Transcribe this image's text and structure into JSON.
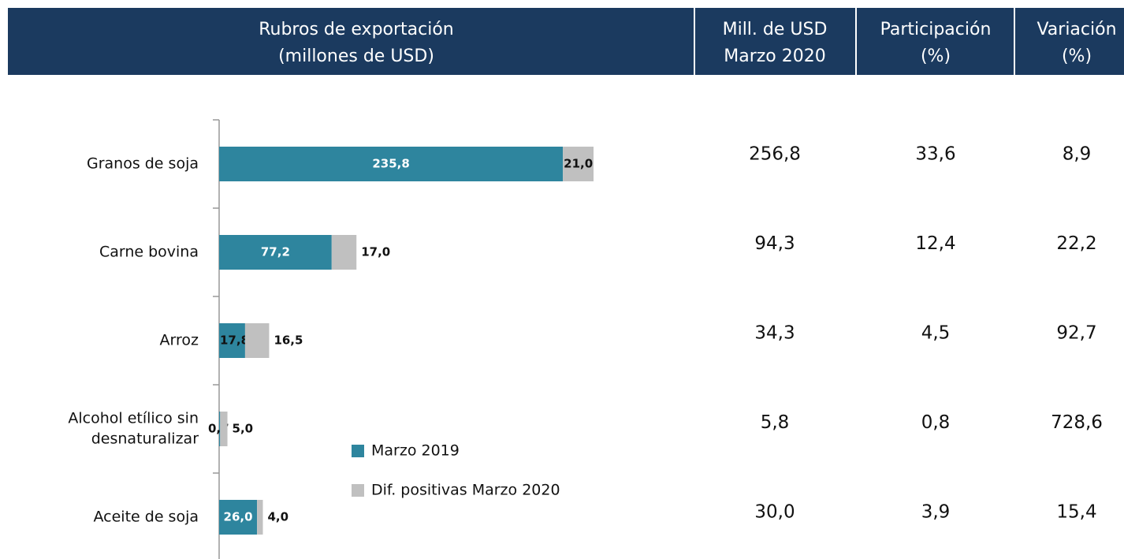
{
  "chart_data": {
    "type": "bar",
    "orientation": "horizontal",
    "stacked": true,
    "header": {
      "columns": [
        [
          "Rubros de exportación",
          "(millones de USD)"
        ],
        [
          "Mill. de USD",
          "Marzo 2020"
        ],
        [
          "Participación",
          "(%)"
        ],
        [
          "Variación",
          "(%)"
        ]
      ]
    },
    "categories": [
      [
        "Granos de soja"
      ],
      [
        "Carne bovina"
      ],
      [
        "Arroz"
      ],
      [
        "Alcohol etílico sin",
        "desnaturalizar"
      ],
      [
        "Aceite de soja"
      ]
    ],
    "series": [
      {
        "name": "Marzo 2019",
        "color": "#2e859e",
        "values": [
          235.8,
          77.2,
          17.8,
          0.7,
          26.0
        ],
        "value_labels": [
          "235,8",
          "77,2",
          "17,8",
          "0,7",
          "26,0"
        ]
      },
      {
        "name": "Dif. positivas Marzo 2020",
        "color": "#c0c0c0",
        "values": [
          21.0,
          17.0,
          16.5,
          5.0,
          4.0
        ],
        "value_labels": [
          "21,0",
          "17,0",
          "16,5",
          "5,0",
          "4,0"
        ]
      }
    ],
    "table": {
      "rows": [
        [
          "256,8",
          "33,6",
          "8,9"
        ],
        [
          "94,3",
          "12,4",
          "22,2"
        ],
        [
          "34,3",
          "4,5",
          "92,7"
        ],
        [
          "5,8",
          "0,8",
          "728,6"
        ],
        [
          "30,0",
          "3,9",
          "15,4"
        ]
      ]
    }
  }
}
